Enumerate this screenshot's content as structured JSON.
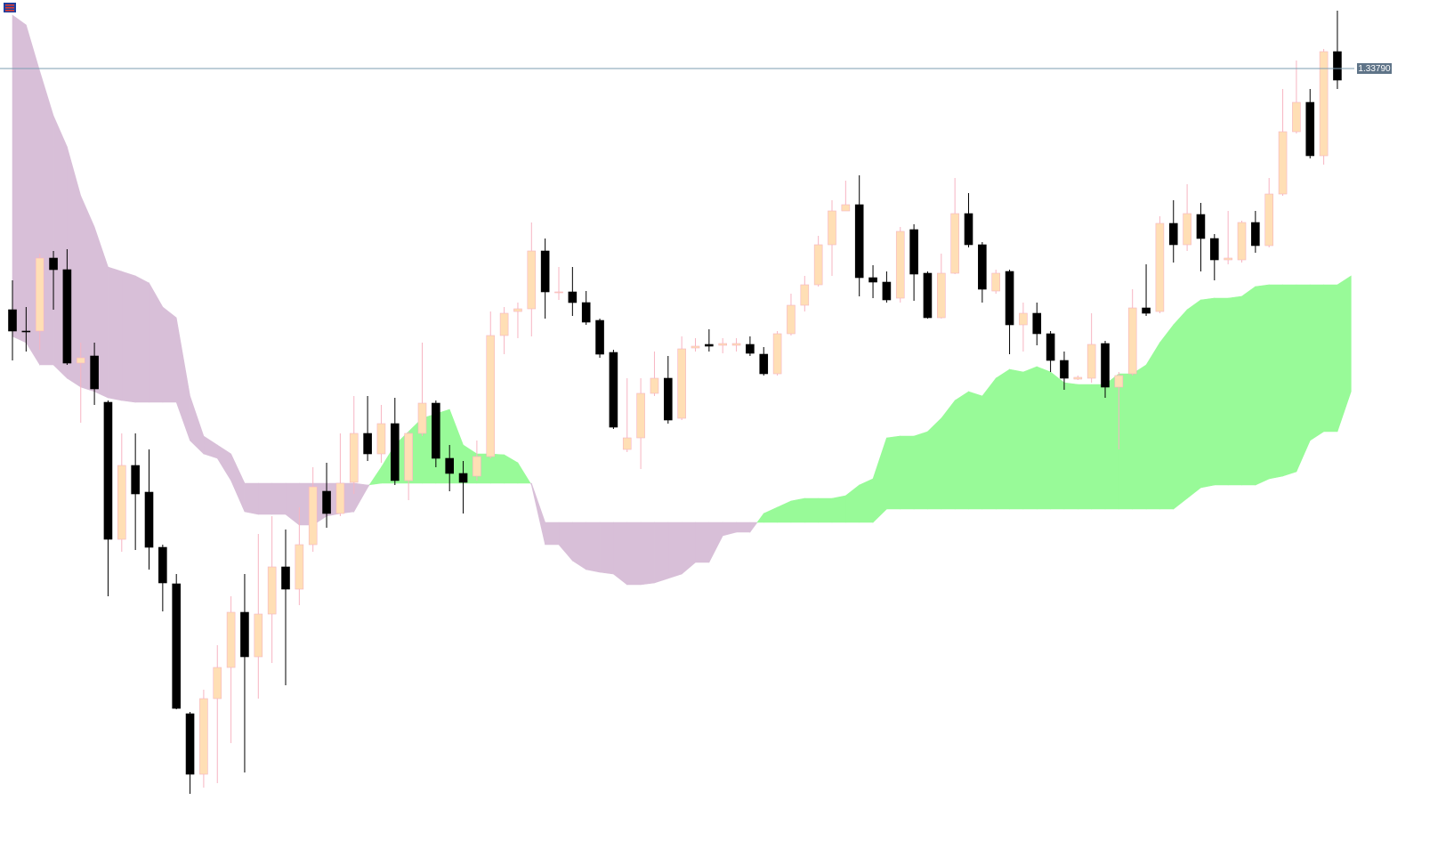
{
  "chart_data": {
    "type": "candlestick",
    "ylim": [
      1.32922,
      1.33867
    ],
    "open": [
      1.33519,
      1.33495,
      1.33495,
      1.33577,
      1.33564,
      1.33459,
      1.33467,
      1.33415,
      1.33261,
      1.33344,
      1.33314,
      1.33252,
      1.33211,
      1.33065,
      1.32997,
      1.33082,
      1.33117,
      1.33179,
      1.33129,
      1.33177,
      1.3323,
      1.33205,
      1.33255,
      1.33315,
      1.3329,
      1.33325,
      1.3338,
      1.33357,
      1.33391,
      1.33327,
      1.3338,
      1.33414,
      1.33352,
      1.33335,
      1.33332,
      1.33354,
      1.3349,
      1.33517,
      1.3352,
      1.33585,
      1.33539,
      1.33539,
      1.33527,
      1.33507,
      1.33471,
      1.33362,
      1.33375,
      1.33425,
      1.33442,
      1.33397,
      1.33476,
      1.3348,
      1.33479,
      1.33479,
      1.3348,
      1.33469,
      1.33447,
      1.33492,
      1.33524,
      1.33547,
      1.33592,
      1.3363,
      1.33637,
      1.33555,
      1.3355,
      1.33532,
      1.33609,
      1.3356,
      1.3351,
      1.3356,
      1.33627,
      1.33592,
      1.3354,
      1.33562,
      1.33502,
      1.33515,
      1.33492,
      1.33462,
      1.33441,
      1.33442,
      1.33481,
      1.33432,
      1.33447,
      1.33521,
      1.33517,
      1.33616,
      1.33592,
      1.33626,
      1.33599,
      1.33575,
      1.33575,
      1.33617,
      1.33591,
      1.33649,
      1.33719,
      1.33752,
      1.33692,
      1.33809
    ],
    "high": [
      1.33552,
      1.33522,
      1.33582,
      1.33585,
      1.33587,
      1.33482,
      1.33482,
      1.33417,
      1.3338,
      1.3338,
      1.33362,
      1.33255,
      1.33222,
      1.33067,
      1.33092,
      1.33142,
      1.33197,
      1.33222,
      1.33267,
      1.33287,
      1.33272,
      1.33297,
      1.33342,
      1.33347,
      1.3338,
      1.33422,
      1.33422,
      1.33412,
      1.3342,
      1.33382,
      1.33482,
      1.33417,
      1.33367,
      1.33349,
      1.33372,
      1.33517,
      1.33522,
      1.33527,
      1.33617,
      1.33599,
      1.33567,
      1.33567,
      1.3354,
      1.33509,
      1.33474,
      1.33442,
      1.33442,
      1.33472,
      1.33467,
      1.33489,
      1.33487,
      1.33497,
      1.33487,
      1.33487,
      1.33489,
      1.33477,
      1.33495,
      1.33537,
      1.33557,
      1.33602,
      1.33642,
      1.33664,
      1.3367,
      1.33569,
      1.33562,
      1.33612,
      1.33615,
      1.33562,
      1.33582,
      1.33667,
      1.3365,
      1.33595,
      1.33564,
      1.33564,
      1.33527,
      1.33527,
      1.33495,
      1.33472,
      1.33445,
      1.33515,
      1.33484,
      1.33449,
      1.33542,
      1.3357,
      1.33624,
      1.33642,
      1.3366,
      1.33639,
      1.33604,
      1.3363,
      1.33619,
      1.3363,
      1.33667,
      1.33767,
      1.33799,
      1.33767,
      1.33812,
      1.33855
    ],
    "low": [
      1.33462,
      1.33472,
      1.33474,
      1.33519,
      1.33457,
      1.33392,
      1.33412,
      1.33197,
      1.33247,
      1.33249,
      1.33227,
      1.3318,
      1.3307,
      1.32975,
      1.32982,
      1.32987,
      1.33032,
      1.32999,
      1.33082,
      1.33122,
      1.33097,
      1.33187,
      1.33247,
      1.33274,
      1.33287,
      1.33312,
      1.33349,
      1.33347,
      1.33322,
      1.33305,
      1.33377,
      1.33342,
      1.33315,
      1.3329,
      1.33327,
      1.33352,
      1.33469,
      1.33487,
      1.33489,
      1.33509,
      1.3353,
      1.33512,
      1.33502,
      1.33465,
      1.33385,
      1.33359,
      1.3334,
      1.33422,
      1.33391,
      1.33395,
      1.33472,
      1.33472,
      1.3347,
      1.33472,
      1.33467,
      1.33445,
      1.33445,
      1.3349,
      1.33517,
      1.33545,
      1.33557,
      1.3363,
      1.33534,
      1.33532,
      1.33527,
      1.33527,
      1.33529,
      1.33509,
      1.33509,
      1.33559,
      1.33589,
      1.33527,
      1.33537,
      1.33469,
      1.33472,
      1.33479,
      1.33449,
      1.33429,
      1.3344,
      1.33437,
      1.3342,
      1.33362,
      1.33445,
      1.33512,
      1.33515,
      1.33572,
      1.33585,
      1.33562,
      1.33552,
      1.3357,
      1.33572,
      1.33583,
      1.33589,
      1.33647,
      1.33717,
      1.33689,
      1.33682,
      1.33767
    ],
    "close": [
      1.33495,
      1.33494,
      1.33577,
      1.33564,
      1.33459,
      1.33465,
      1.3343,
      1.33261,
      1.33344,
      1.33312,
      1.33252,
      1.33212,
      1.33071,
      1.32997,
      1.33082,
      1.33117,
      1.33179,
      1.33129,
      1.33177,
      1.3323,
      1.33205,
      1.33255,
      1.3332,
      1.3329,
      1.33324,
      1.3338,
      1.33357,
      1.33391,
      1.33327,
      1.3338,
      1.33414,
      1.33352,
      1.33335,
      1.33325,
      1.33354,
      1.3349,
      1.33515,
      1.3352,
      1.33585,
      1.33539,
      1.33539,
      1.33527,
      1.33505,
      1.33469,
      1.33387,
      1.33375,
      1.33425,
      1.33442,
      1.33395,
      1.33475,
      1.33478,
      1.33478,
      1.33481,
      1.33481,
      1.3347,
      1.33447,
      1.33492,
      1.33524,
      1.33547,
      1.33592,
      1.3363,
      1.33637,
      1.33555,
      1.3355,
      1.3353,
      1.33607,
      1.33559,
      1.3351,
      1.3356,
      1.33627,
      1.33592,
      1.33542,
      1.3356,
      1.33502,
      1.33515,
      1.33492,
      1.33462,
      1.33442,
      1.33443,
      1.3348,
      1.33432,
      1.33445,
      1.33521,
      1.33515,
      1.33616,
      1.33592,
      1.33627,
      1.33599,
      1.33575,
      1.33577,
      1.33617,
      1.33591,
      1.33649,
      1.33719,
      1.33752,
      1.33692,
      1.33809,
      1.33777
    ],
    "span_a": [
      1.33489,
      1.33482,
      1.33457,
      1.33457,
      1.33442,
      1.33432,
      1.33427,
      1.3342,
      1.33417,
      1.33415,
      1.33415,
      1.33415,
      1.33415,
      1.33372,
      1.33357,
      1.33352,
      1.33327,
      1.33292,
      1.33289,
      1.33289,
      1.33289,
      1.33277,
      1.33277,
      1.33287,
      1.3329,
      1.33292,
      1.33319,
      1.33342,
      1.33367,
      1.33382,
      1.33397,
      1.33402,
      1.33407,
      1.33367,
      1.33357,
      1.33357,
      1.33356,
      1.33347,
      1.33322,
      1.33255,
      1.33255,
      1.33237,
      1.33227,
      1.33224,
      1.33222,
      1.3321,
      1.3321,
      1.33212,
      1.33217,
      1.33222,
      1.33235,
      1.33235,
      1.33265,
      1.33269,
      1.33269,
      1.3329,
      1.33297,
      1.33304,
      1.33307,
      1.33307,
      1.33307,
      1.3331,
      1.33322,
      1.33329,
      1.33375,
      1.33377,
      1.33377,
      1.33382,
      1.33397,
      1.33417,
      1.33427,
      1.33422,
      1.33442,
      1.33452,
      1.33449,
      1.33455,
      1.33449,
      1.33437,
      1.33435,
      1.33435,
      1.33435,
      1.33447,
      1.33447,
      1.33457,
      1.33482,
      1.33502,
      1.33519,
      1.3353,
      1.33532,
      1.33532,
      1.33534,
      1.33545,
      1.33547,
      1.33547,
      1.33547,
      1.33547,
      1.33547,
      1.33547,
      1.33557
    ],
    "span_b": [
      1.3385,
      1.33839,
      1.33787,
      1.33737,
      1.33702,
      1.33647,
      1.33612,
      1.33567,
      1.33562,
      1.33557,
      1.33549,
      1.33522,
      1.3351,
      1.33422,
      1.33377,
      1.33367,
      1.33357,
      1.33324,
      1.33324,
      1.33324,
      1.33324,
      1.33324,
      1.33324,
      1.33324,
      1.33324,
      1.33324,
      1.33322,
      1.33324,
      1.33324,
      1.33324,
      1.33324,
      1.33324,
      1.33324,
      1.33324,
      1.33324,
      1.33324,
      1.33324,
      1.33324,
      1.33324,
      1.3328,
      1.3328,
      1.3328,
      1.3328,
      1.3328,
      1.3328,
      1.3328,
      1.3328,
      1.3328,
      1.3328,
      1.3328,
      1.3328,
      1.3328,
      1.3328,
      1.3328,
      1.3328,
      1.3328,
      1.3328,
      1.3328,
      1.3328,
      1.3328,
      1.3328,
      1.3328,
      1.3328,
      1.3328,
      1.33295,
      1.33295,
      1.33295,
      1.33295,
      1.33295,
      1.33295,
      1.33295,
      1.33295,
      1.33295,
      1.33295,
      1.33295,
      1.33295,
      1.33295,
      1.33295,
      1.33295,
      1.33295,
      1.33295,
      1.33295,
      1.33295,
      1.33295,
      1.33295,
      1.33295,
      1.33307,
      1.33319,
      1.33322,
      1.33322,
      1.33322,
      1.33322,
      1.33329,
      1.33332,
      1.33337,
      1.33372,
      1.33382,
      1.33382,
      1.33427
    ],
    "price_line": {
      "value": 1.3379,
      "label": "1.33790"
    },
    "up_color": "#ffdfb5",
    "up_wick": "#f7b4c2",
    "down_color": "#000000",
    "cloud_up_color": "#98fa98",
    "cloud_down_color": "#d8bfd8",
    "price_line_color": "#7d9db2",
    "price_label_color": "#5f7488"
  }
}
